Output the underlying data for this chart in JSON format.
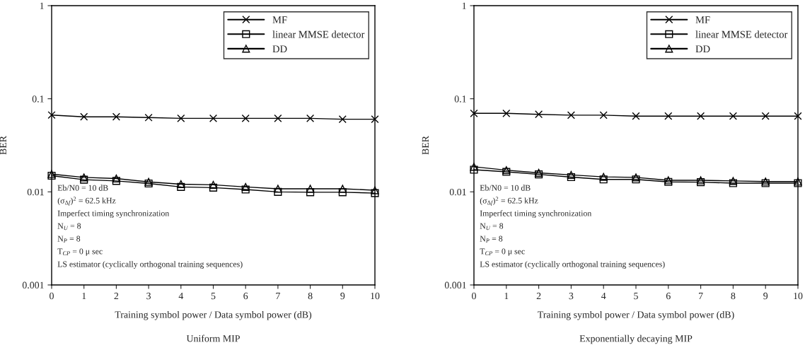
{
  "chart_data": [
    {
      "type": "line",
      "title": "Uniform MIP",
      "xlabel": "Training symbol power / Data symbol power (dB)",
      "ylabel": "BER",
      "x": [
        0,
        1,
        2,
        3,
        4,
        5,
        6,
        7,
        8,
        9,
        10
      ],
      "series": [
        {
          "name": "MF",
          "color": "#000000",
          "marker": "cross",
          "values": [
            0.0668,
            0.064,
            0.064,
            0.0628,
            0.0616,
            0.0616,
            0.0616,
            0.0616,
            0.0616,
            0.0603,
            0.0603
          ]
        },
        {
          "name": "linear MMSE detector",
          "color": "#000000",
          "marker": "square",
          "values": [
            0.0149,
            0.0135,
            0.0131,
            0.0123,
            0.0113,
            0.0111,
            0.0106,
            0.01,
            0.0099,
            0.0099,
            0.0097
          ]
        },
        {
          "name": "DD",
          "color": "#000000",
          "marker": "triangle",
          "values": [
            0.0155,
            0.0143,
            0.0139,
            0.0128,
            0.0121,
            0.0119,
            0.0113,
            0.0108,
            0.0108,
            0.0108,
            0.0104
          ]
        }
      ],
      "xlim": [
        0,
        10
      ],
      "xticks": [
        0,
        1,
        2,
        3,
        4,
        5,
        6,
        7,
        8,
        9,
        10
      ],
      "ylim": [
        0.001,
        1
      ],
      "yticks": [
        0.001,
        0.01,
        0.1,
        1
      ],
      "log": "y",
      "grid": false,
      "legend": "top right",
      "line_style": "solid",
      "annotations": [
        "Eb/N0 = 10 dB",
        "(σ$_{Δf}$)$^{2}$ = 62.5 kHz",
        "Imperfect timing synchronization",
        "N$_{U}$ = 8",
        "N$_{P}$ = 8",
        "T$_{CP}$ = 0 μ sec",
        "LS estimator (cyclically orthogonal training sequences)"
      ]
    },
    {
      "type": "line",
      "title": "Exponentially decaying MIP",
      "xlabel": "Training symbol power / Data symbol power (dB)",
      "ylabel": "BER",
      "x": [
        0,
        1,
        2,
        3,
        4,
        5,
        6,
        7,
        8,
        9,
        10
      ],
      "series": [
        {
          "name": "MF",
          "color": "#000000",
          "marker": "cross",
          "values": [
            0.0697,
            0.0697,
            0.068,
            0.0667,
            0.0667,
            0.0651,
            0.0651,
            0.0651,
            0.0651,
            0.0651,
            0.0651
          ]
        },
        {
          "name": "linear MMSE detector",
          "color": "#000000",
          "marker": "square",
          "values": [
            0.0173,
            0.0164,
            0.0154,
            0.0144,
            0.0136,
            0.0136,
            0.0128,
            0.0127,
            0.0124,
            0.0124,
            0.0124
          ]
        },
        {
          "name": "DD",
          "color": "#000000",
          "marker": "triangle",
          "values": [
            0.0186,
            0.0171,
            0.016,
            0.0152,
            0.0145,
            0.0143,
            0.0133,
            0.0133,
            0.0131,
            0.0129,
            0.0129
          ]
        }
      ],
      "xlim": [
        0,
        10
      ],
      "xticks": [
        0,
        1,
        2,
        3,
        4,
        5,
        6,
        7,
        8,
        9,
        10
      ],
      "ylim": [
        0.001,
        1
      ],
      "yticks": [
        0.001,
        0.01,
        0.1,
        1
      ],
      "log": "y",
      "grid": false,
      "legend": "top right",
      "line_style": "solid",
      "annotations": [
        "Eb/N0 = 10 dB",
        "(σ$_{Δf}$)$^{2}$ = 62.5 kHz",
        "Imperfect timing synchronization",
        "N$_{U}$ = 8",
        "N$_{P}$ = 8",
        "T$_{CP}$ = 0 μ sec",
        "LS estimator (cyclically orthogonal training sequences)"
      ]
    }
  ]
}
